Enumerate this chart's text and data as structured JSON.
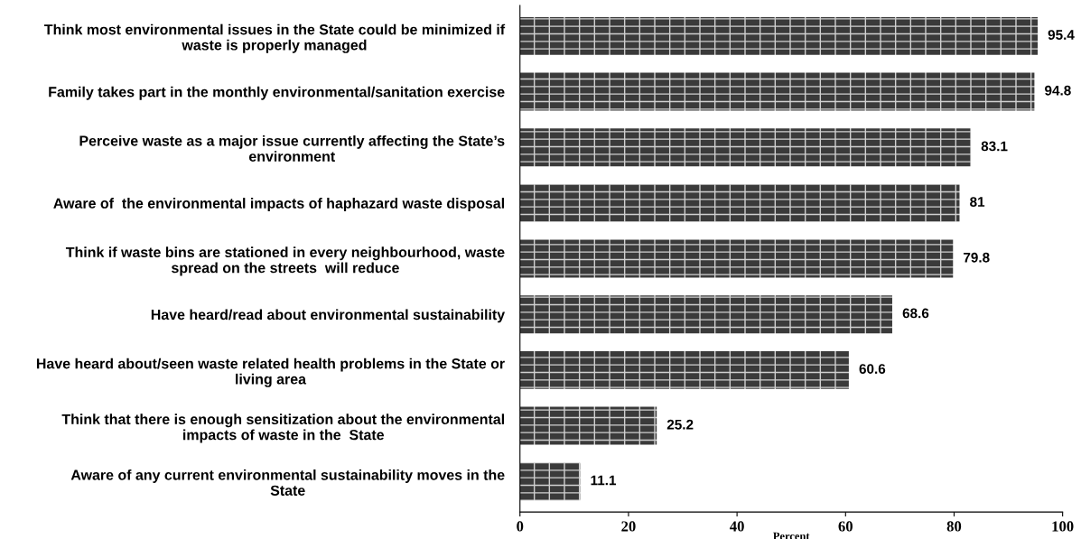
{
  "chart_data": {
    "type": "bar",
    "orientation": "horizontal",
    "xlabel": "Percent",
    "categories": [
      "Think most environmental issues in the State could be minimized if\nwaste is properly managed",
      "Family takes part in the monthly environmental/sanitation exercise",
      "Perceive waste as a major issue currently affecting the State’s\nenvironment",
      "Aware of  the environmental impacts of haphazard waste disposal",
      "Think if waste bins are stationed in every neighbourhood, waste\nspread on the streets  will reduce",
      "Have heard/read about environmental sustainability",
      "Have heard about/seen waste related health problems in the State or\nliving area",
      "Think that there is enough sensitization about the environmental\nimpacts of waste in the  State",
      "Aware of any current environmental sustainability moves in the\nState"
    ],
    "values": [
      95.4,
      94.8,
      83.1,
      81,
      79.8,
      68.6,
      60.6,
      25.2,
      11.1
    ],
    "color": "#3a3a3a",
    "xlim": [
      0,
      100
    ],
    "xticks": [
      0,
      20,
      40,
      60,
      80,
      100
    ],
    "data_labels": true,
    "grid": false,
    "legend": false
  }
}
